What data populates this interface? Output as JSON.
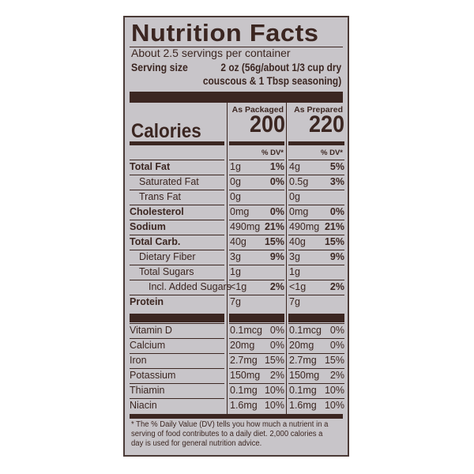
{
  "title": "Nutrition Facts",
  "servings_per_container": "About 2.5 servings per container",
  "serving_size_label": "Serving size",
  "serving_size_value_line1": "2 oz (56g/about 1/3 cup dry",
  "serving_size_value_line2": "couscous & 1 Tbsp seasoning)",
  "columns": [
    {
      "header": "As Packaged",
      "calories": "200",
      "dv_header": "% DV*"
    },
    {
      "header": "As Prepared",
      "calories": "220",
      "dv_header": "% DV*"
    }
  ],
  "calories_label": "Calories",
  "nutrients": [
    {
      "name": "Total Fat",
      "bold": true,
      "indent": 0,
      "pkg_amt": "1g",
      "pkg_dv": "1%",
      "prep_amt": "4g",
      "prep_dv": "5%"
    },
    {
      "name": "Saturated Fat",
      "bold": false,
      "indent": 1,
      "pkg_amt": "0g",
      "pkg_dv": "0%",
      "prep_amt": "0.5g",
      "prep_dv": "3%"
    },
    {
      "name": "Trans Fat",
      "bold": false,
      "indent": 1,
      "pkg_amt": "0g",
      "pkg_dv": "",
      "prep_amt": "0g",
      "prep_dv": ""
    },
    {
      "name": "Cholesterol",
      "bold": true,
      "indent": 0,
      "pkg_amt": "0mg",
      "pkg_dv": "0%",
      "prep_amt": "0mg",
      "prep_dv": "0%"
    },
    {
      "name": "Sodium",
      "bold": true,
      "indent": 0,
      "pkg_amt": "490mg",
      "pkg_dv": "21%",
      "prep_amt": "490mg",
      "prep_dv": "21%"
    },
    {
      "name": "Total Carb.",
      "bold": true,
      "indent": 0,
      "pkg_amt": "40g",
      "pkg_dv": "15%",
      "prep_amt": "40g",
      "prep_dv": "15%"
    },
    {
      "name": "Dietary Fiber",
      "bold": false,
      "indent": 1,
      "pkg_amt": "3g",
      "pkg_dv": "9%",
      "prep_amt": "3g",
      "prep_dv": "9%"
    },
    {
      "name": "Total Sugars",
      "bold": false,
      "indent": 1,
      "pkg_amt": "1g",
      "pkg_dv": "",
      "prep_amt": "1g",
      "prep_dv": ""
    },
    {
      "name": "Incl. Added Sugars",
      "bold": false,
      "indent": 2,
      "pkg_amt": "<1g",
      "pkg_dv": "2%",
      "prep_amt": "<1g",
      "prep_dv": "2%"
    },
    {
      "name": "Protein",
      "bold": true,
      "indent": 0,
      "pkg_amt": "7g",
      "pkg_dv": "",
      "prep_amt": "7g",
      "prep_dv": ""
    }
  ],
  "vitamins": [
    {
      "name": "Vitamin D",
      "pkg_amt": "0.1mcg",
      "pkg_dv": "0%",
      "prep_amt": "0.1mcg",
      "prep_dv": "0%"
    },
    {
      "name": "Calcium",
      "pkg_amt": "20mg",
      "pkg_dv": "0%",
      "prep_amt": "20mg",
      "prep_dv": "0%"
    },
    {
      "name": "Iron",
      "pkg_amt": "2.7mg",
      "pkg_dv": "15%",
      "prep_amt": "2.7mg",
      "prep_dv": "15%"
    },
    {
      "name": "Potassium",
      "pkg_amt": "150mg",
      "pkg_dv": "2%",
      "prep_amt": "150mg",
      "prep_dv": "2%"
    },
    {
      "name": "Thiamin",
      "pkg_amt": "0.1mg",
      "pkg_dv": "10%",
      "prep_amt": "0.1mg",
      "prep_dv": "10%"
    },
    {
      "name": "Niacin",
      "pkg_amt": "1.6mg",
      "pkg_dv": "10%",
      "prep_amt": "1.6mg",
      "prep_dv": "10%"
    }
  ],
  "footnote": "* The % Daily Value (DV) tells you how much a nutrient in a serving of food contributes to a daily diet. 2,000 calories a day is used for general nutrition advice.",
  "colors": {
    "background": "#c8c5c9",
    "ink": "#3b2621"
  }
}
